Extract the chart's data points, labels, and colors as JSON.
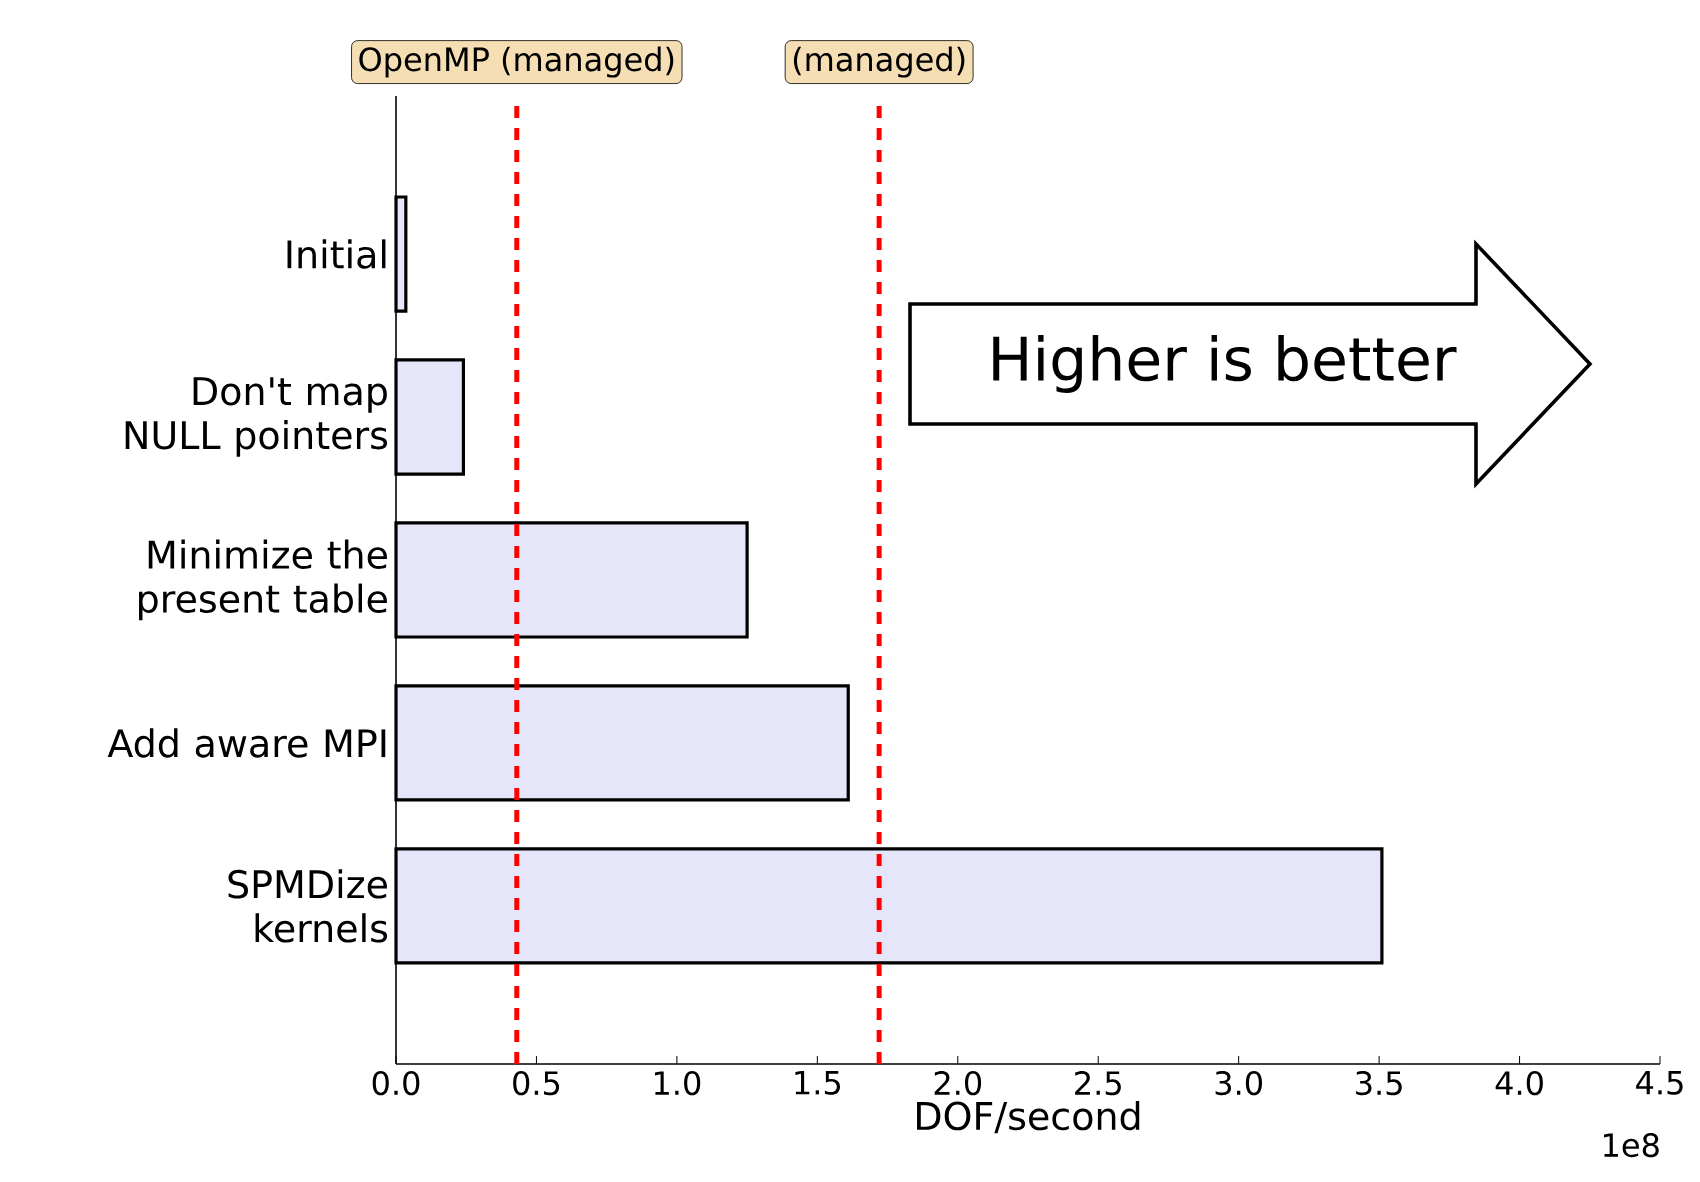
{
  "chart_data": {
    "type": "bar",
    "orientation": "horizontal",
    "xlabel": "DOF/second",
    "categories": [
      "Initial",
      "Don't map NULL pointers",
      "Minimize the present table",
      "Add aware MPI",
      "SPMDize kernels"
    ],
    "values": [
      0.035,
      0.24,
      1.25,
      1.61,
      3.51
    ],
    "color": "#e6e6fa",
    "xlim": [
      0,
      4.5
    ],
    "xticks": [
      {
        "value": 0,
        "label": "0.0"
      },
      0.5,
      {
        "value": 1,
        "label": "1.0"
      },
      1.5,
      {
        "value": 2,
        "label": "2.0"
      },
      2.5,
      {
        "value": 3,
        "label": "3.0"
      },
      3.5,
      {
        "value": 4,
        "label": "4.0"
      },
      4.5
    ],
    "ref_lines": [
      {
        "axis": "x",
        "value": 0.43,
        "label": "OpenMP (managed)",
        "color": "#ff0000",
        "line_style": "dashed"
      },
      {
        "axis": "x",
        "value": 1.72,
        "label": "(managed)",
        "color": "#ff0000",
        "line_style": "dashed"
      }
    ],
    "annotations": [
      "1e8",
      "Higher is better"
    ],
    "grid": false
  }
}
